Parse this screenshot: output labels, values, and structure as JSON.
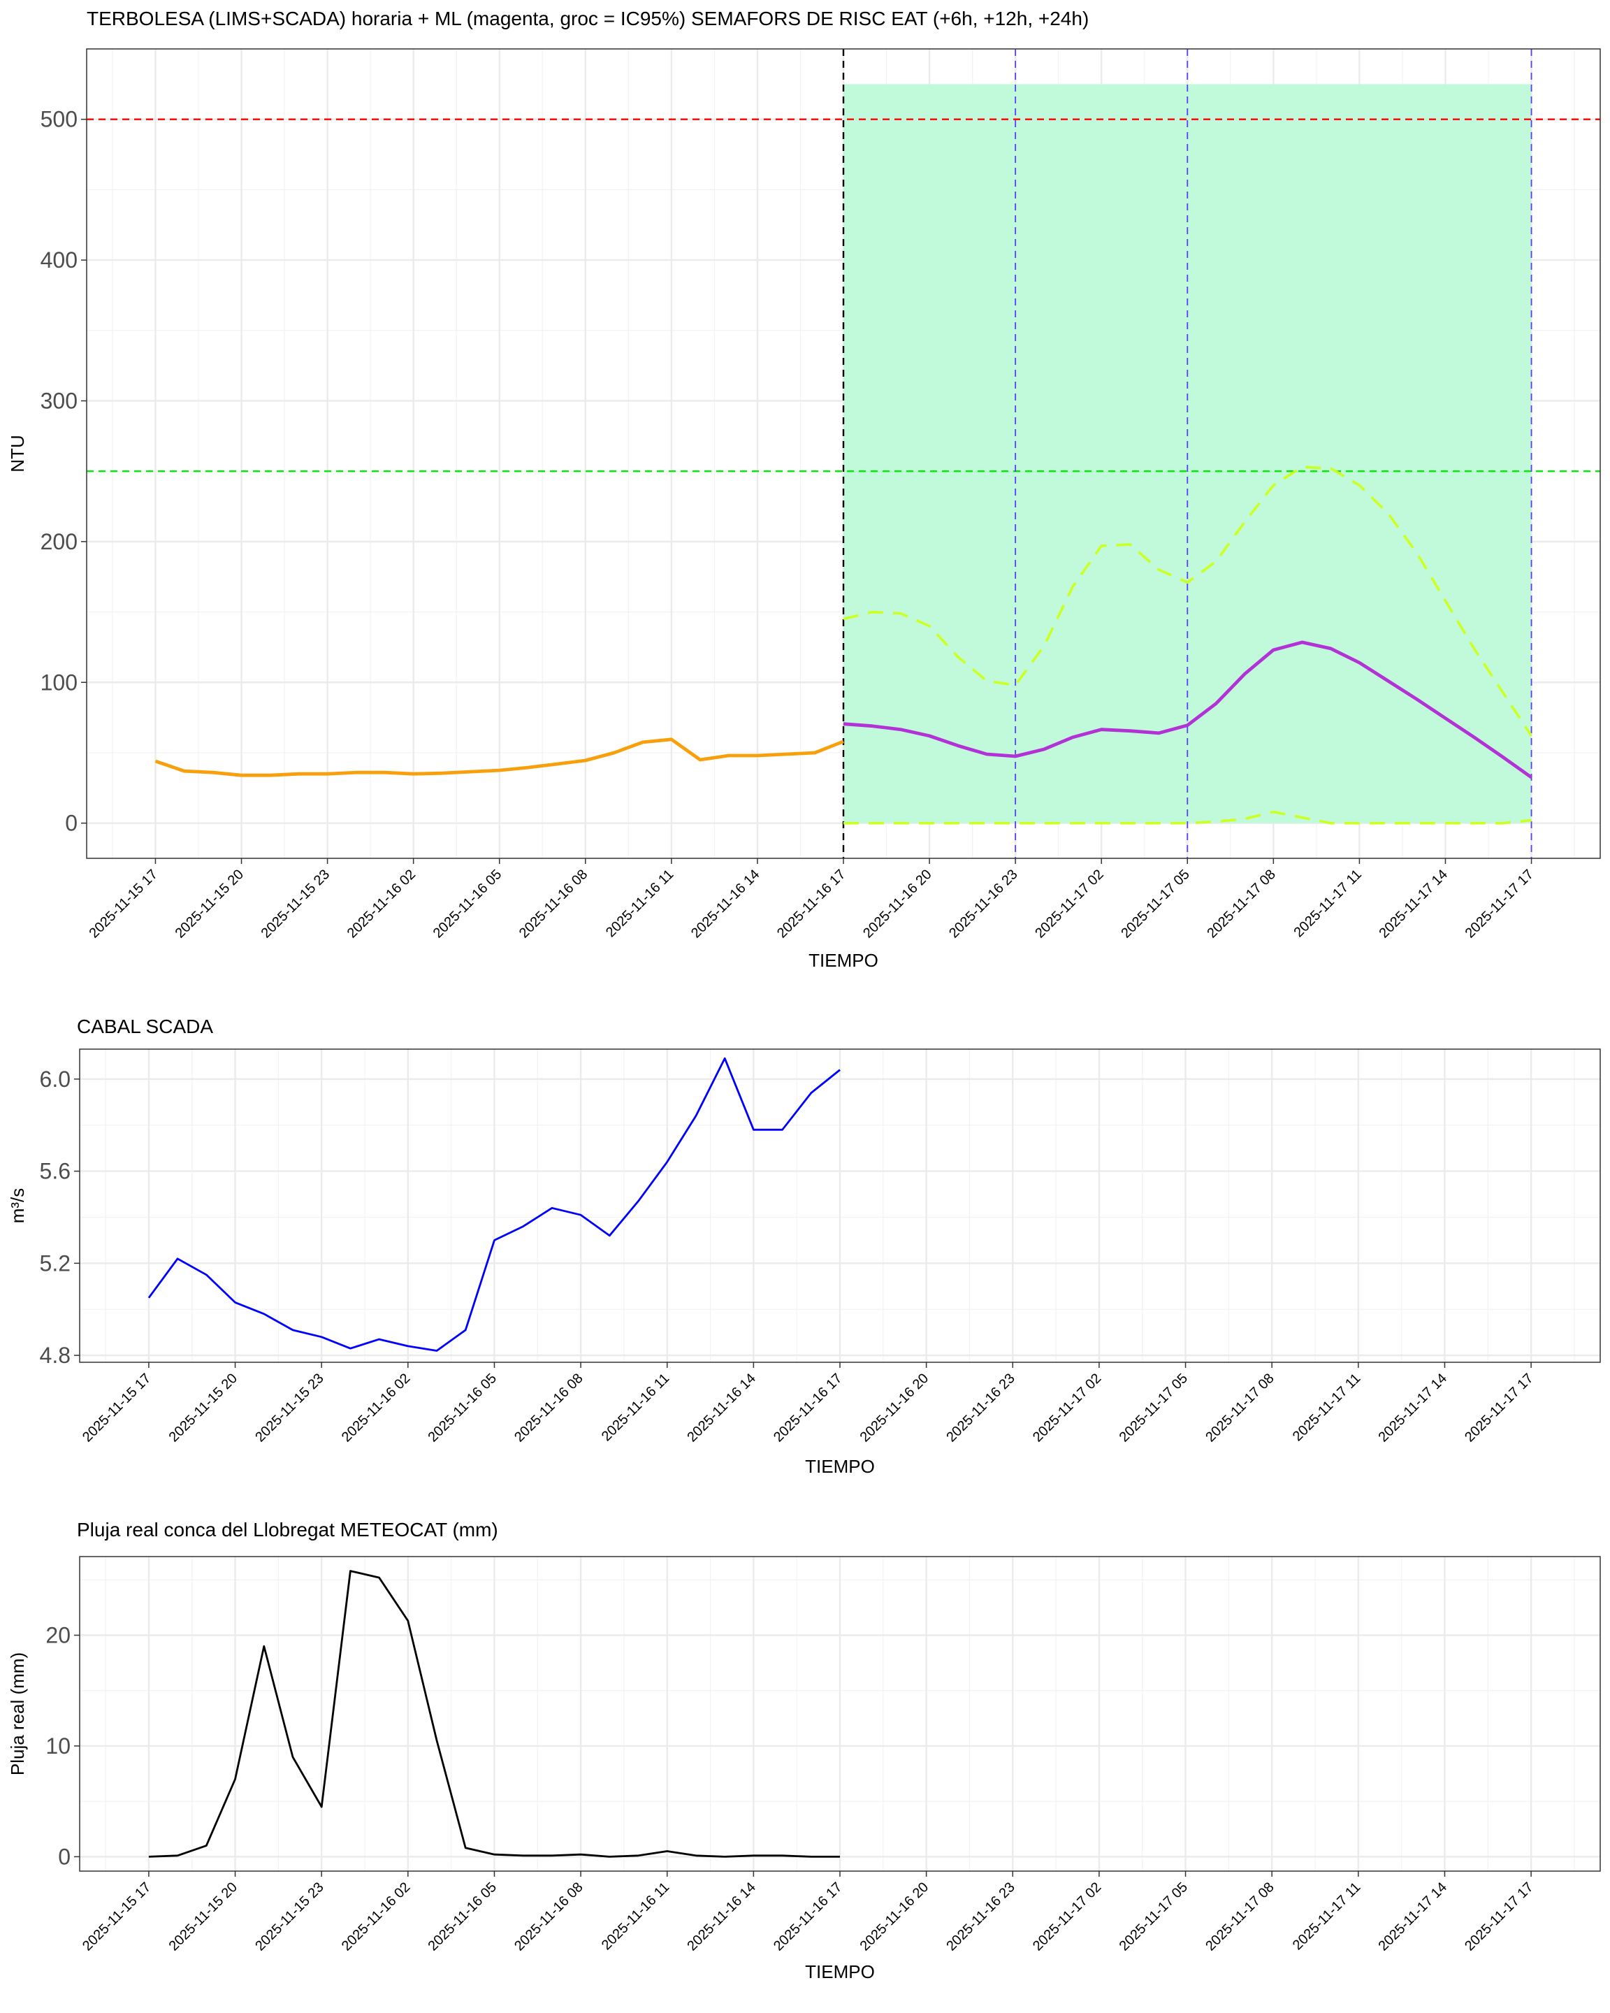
{
  "chart_data": [
    {
      "type": "line",
      "title": "TERBOLESA (LIMS+SCADA) horaria + ML (magenta, groc = IC95%) SEMAFORS DE RISC EAT (+6h, +12h, +24h)",
      "xlabel": "TIEMPO",
      "ylabel": "NTU",
      "x_tick_labels": [
        "2025-11-15 17",
        "2025-11-15 20",
        "2025-11-15 23",
        "2025-11-16 02",
        "2025-11-16 05",
        "2025-11-16 08",
        "2025-11-16 11",
        "2025-11-16 14",
        "2025-11-16 17",
        "2025-11-16 20",
        "2025-11-16 23",
        "2025-11-17 02",
        "2025-11-17 05",
        "2025-11-17 08",
        "2025-11-17 11",
        "2025-11-17 14",
        "2025-11-17 17"
      ],
      "x_range_hours": [
        -2.4,
        50.4
      ],
      "ylim": [
        -25,
        550
      ],
      "y_ticks": [
        0,
        100,
        200,
        300,
        400,
        500
      ],
      "grid": true,
      "thresholds": [
        {
          "value": 500,
          "color": "#ff0000",
          "style": "dashed"
        },
        {
          "value": 250,
          "color": "#00ee00",
          "style": "dashed"
        }
      ],
      "forecast_start_hour": 24,
      "risk_band": {
        "x_from_hour": 24,
        "x_to_hour": 48,
        "y_from": 0,
        "y_to": 525,
        "color": "#c0fada"
      },
      "horizon_lines_hours": [
        30,
        36,
        48
      ],
      "series": [
        {
          "role": "observed",
          "color": "#f8a00c",
          "x": [
            0,
            1,
            2,
            3,
            4,
            5,
            6,
            7,
            8,
            9,
            10,
            11,
            12,
            13,
            14,
            15,
            16,
            17,
            18,
            19,
            20,
            21,
            22,
            23,
            24
          ],
          "values": [
            44,
            37,
            36,
            34,
            34,
            35,
            35,
            36,
            36,
            35,
            35.5,
            36.5,
            37.5,
            39.5,
            42,
            44.5,
            50,
            57.5,
            59.5,
            45,
            48,
            48,
            49,
            50,
            58
          ]
        },
        {
          "role": "forecast",
          "color": "#b332d6",
          "x": [
            24,
            25,
            26,
            27,
            28,
            29,
            30,
            31,
            32,
            33,
            34,
            35,
            36,
            37,
            38,
            39,
            40,
            41,
            42,
            43,
            44,
            45,
            46,
            47,
            48
          ],
          "values": [
            70.5,
            69,
            66.5,
            62,
            55,
            49,
            47.5,
            52.5,
            61,
            66.5,
            65.5,
            64,
            69.5,
            85,
            106,
            123,
            128.5,
            124,
            114,
            101,
            88,
            74.5,
            61,
            47,
            32.5
          ]
        },
        {
          "role": "upper",
          "color": "#ccff22",
          "style": "dashed",
          "x": [
            24,
            25,
            26,
            27,
            28,
            29,
            30,
            31,
            32,
            33,
            34,
            35,
            36,
            37,
            38,
            39,
            40,
            41,
            42,
            43,
            44,
            45,
            46,
            47,
            48
          ],
          "values": [
            145,
            150,
            149,
            140,
            118,
            101,
            98,
            126,
            168,
            197,
            198,
            180,
            171,
            186,
            214,
            240,
            253,
            252,
            240,
            220,
            192,
            158,
            124,
            93,
            62
          ]
        },
        {
          "role": "lower",
          "color": "#ccff22",
          "style": "dashed",
          "x": [
            24,
            25,
            26,
            27,
            28,
            29,
            30,
            31,
            32,
            33,
            34,
            35,
            36,
            37,
            38,
            39,
            40,
            41,
            42,
            43,
            44,
            45,
            46,
            47,
            48
          ],
          "values": [
            0,
            0,
            0,
            0,
            0,
            0,
            0,
            0,
            0,
            0,
            0,
            0,
            0,
            1,
            3,
            8,
            4,
            0,
            0,
            0,
            0,
            0,
            0,
            0,
            2
          ]
        }
      ]
    },
    {
      "type": "line",
      "title": "CABAL SCADA",
      "xlabel": "TIEMPO",
      "ylabel": "m³/s",
      "x_tick_labels": [
        "2025-11-15 17",
        "2025-11-15 20",
        "2025-11-15 23",
        "2025-11-16 02",
        "2025-11-16 05",
        "2025-11-16 08",
        "2025-11-16 11",
        "2025-11-16 14",
        "2025-11-16 17",
        "2025-11-16 20",
        "2025-11-16 23",
        "2025-11-17 02",
        "2025-11-17 05",
        "2025-11-17 08",
        "2025-11-17 11",
        "2025-11-17 14",
        "2025-11-17 17"
      ],
      "x_range_hours": [
        -2.4,
        50.4
      ],
      "ylim": [
        4.77,
        6.13
      ],
      "y_ticks": [
        4.8,
        5.2,
        5.6,
        6.0
      ],
      "y_tick_labels": [
        "4.8",
        "5.2",
        "5.6",
        "6.0"
      ],
      "grid": true,
      "series": [
        {
          "color": "#0000ff",
          "x": [
            0,
            1,
            2,
            3,
            4,
            5,
            6,
            7,
            8,
            9,
            10,
            11,
            12,
            13,
            14,
            15,
            16,
            17,
            18,
            19,
            20,
            21,
            22,
            23,
            24
          ],
          "values": [
            5.05,
            5.22,
            5.15,
            5.03,
            4.98,
            4.91,
            4.88,
            4.83,
            4.87,
            4.84,
            4.82,
            4.91,
            5.3,
            5.36,
            5.44,
            5.41,
            5.32,
            5.47,
            5.64,
            5.84,
            6.09,
            5.78,
            5.78,
            5.94,
            6.04
          ]
        }
      ]
    },
    {
      "type": "line",
      "title": "Pluja real conca del Llobregat METEOCAT (mm)",
      "xlabel": "TIEMPO",
      "ylabel": "Pluja real (mm)",
      "x_tick_labels": [
        "2025-11-15 17",
        "2025-11-15 20",
        "2025-11-15 23",
        "2025-11-16 02",
        "2025-11-16 05",
        "2025-11-16 08",
        "2025-11-16 11",
        "2025-11-16 14",
        "2025-11-16 17",
        "2025-11-16 20",
        "2025-11-16 23",
        "2025-11-17 02",
        "2025-11-17 05",
        "2025-11-17 08",
        "2025-11-17 11",
        "2025-11-17 14",
        "2025-11-17 17"
      ],
      "x_range_hours": [
        -2.4,
        50.4
      ],
      "ylim": [
        -1.3,
        27.1
      ],
      "y_ticks": [
        0,
        10,
        20
      ],
      "grid": true,
      "series": [
        {
          "color": "#000000",
          "x": [
            0,
            1,
            2,
            3,
            4,
            5,
            6,
            7,
            8,
            9,
            10,
            11,
            12,
            13,
            14,
            15,
            16,
            17,
            18,
            19,
            20,
            21,
            22,
            23,
            24
          ],
          "values": [
            0,
            0.1,
            1,
            7,
            19,
            9,
            4.5,
            25.8,
            25.2,
            21.3,
            10.5,
            0.8,
            0.2,
            0.1,
            0.1,
            0.2,
            0,
            0.1,
            0.5,
            0.1,
            0,
            0.1,
            0.1,
            0,
            0
          ]
        }
      ]
    }
  ]
}
